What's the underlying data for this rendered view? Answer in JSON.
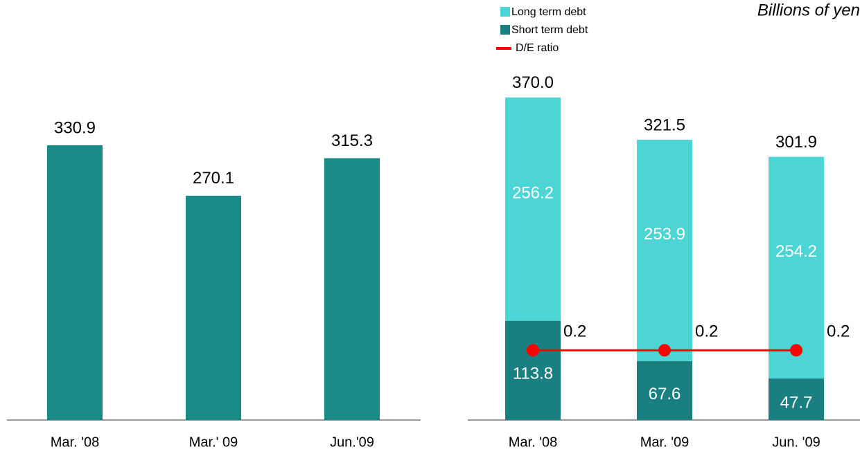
{
  "chart_data": [
    {
      "type": "bar",
      "categories": [
        "Mar. '08",
        "Mar.' 09",
        "Jun.'09"
      ],
      "values": [
        330.9,
        270.1,
        315.3
      ],
      "color": "#1a8a87",
      "ylim": [
        0,
        380
      ]
    },
    {
      "type": "stacked_bar",
      "subtitle": "Billions of yen",
      "categories": [
        "Mar. '08",
        "Mar. '09",
        "Jun. '09"
      ],
      "series": [
        {
          "name": "Long term debt",
          "color": "#4dd4d4",
          "values": [
            256.2,
            253.9,
            254.2
          ]
        },
        {
          "name": "Short term debt",
          "color": "#1a7f80",
          "values": [
            113.8,
            67.6,
            47.7
          ]
        },
        {
          "name": "D/E ratio",
          "type": "line",
          "axis": "y2",
          "color": "#ff0000",
          "values": [
            0.2,
            0.2,
            0.2
          ]
        }
      ],
      "totals": [
        370.0,
        321.5,
        301.9
      ],
      "total_labels": [
        "370.0",
        "321.5",
        "301.9"
      ],
      "ylim": [
        0,
        400
      ],
      "y2lim": [
        0,
        1.0
      ],
      "legend": "upper left"
    }
  ]
}
